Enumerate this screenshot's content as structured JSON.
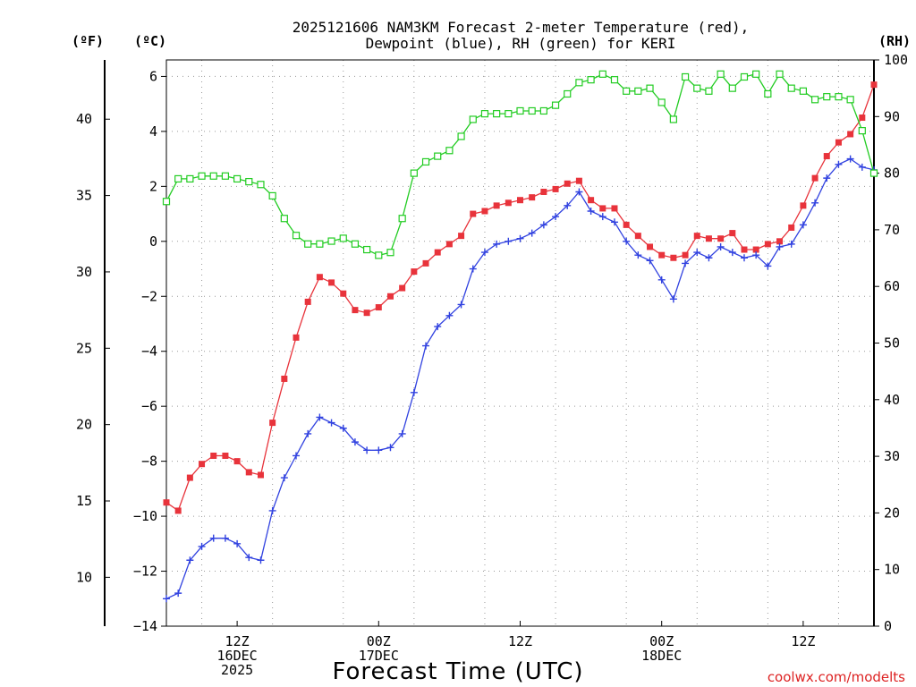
{
  "chart_data": {
    "type": "line",
    "title_line1": "2025121606 NAM3KM Forecast 2-meter Temperature (red),",
    "title_line2": "Dewpoint (blue), RH (green) for KERI",
    "xlabel": "Forecast Time (UTC)",
    "credit": "coolwx.com/modelts",
    "unit_f": "(ºF)",
    "unit_c": "(ºC)",
    "unit_rh": "(RH)",
    "x_hours": [
      0,
      1,
      2,
      3,
      4,
      5,
      6,
      7,
      8,
      9,
      10,
      11,
      12,
      13,
      14,
      15,
      16,
      17,
      18,
      19,
      20,
      21,
      22,
      23,
      24,
      25,
      26,
      27,
      28,
      29,
      30,
      31,
      32,
      33,
      34,
      35,
      36,
      37,
      38,
      39,
      40,
      41,
      42,
      43,
      44,
      45,
      46,
      47,
      48,
      49,
      50,
      51,
      52,
      53,
      54,
      55,
      56,
      57,
      58,
      59,
      60
    ],
    "xlim": [
      0,
      60
    ],
    "x_ticks": [
      {
        "hour": 6,
        "lines": [
          "12Z",
          "16DEC",
          "2025"
        ]
      },
      {
        "hour": 18,
        "lines": [
          "00Z",
          "17DEC"
        ]
      },
      {
        "hour": 30,
        "lines": [
          "12Z"
        ]
      },
      {
        "hour": 42,
        "lines": [
          "00Z",
          "18DEC"
        ]
      },
      {
        "hour": 54,
        "lines": [
          "12Z"
        ]
      }
    ],
    "ylim_c": [
      -14,
      6.6
    ],
    "yticks_c": [
      "-14",
      "-12",
      "-10",
      "-8",
      "-6",
      "-4",
      "-2",
      "0",
      "2",
      "4",
      "6"
    ],
    "yticks_f": [
      "10",
      "15",
      "20",
      "25",
      "30",
      "35",
      "40"
    ],
    "ylim_rh": [
      0,
      100
    ],
    "yticks_rh": [
      "0",
      "10",
      "20",
      "30",
      "40",
      "50",
      "60",
      "70",
      "80",
      "90",
      "100"
    ],
    "series": [
      {
        "name": "Temperature",
        "color": "#e8333b",
        "axis": "c",
        "marker": "filled-square",
        "values": [
          -9.5,
          -9.8,
          -8.6,
          -8.1,
          -7.8,
          -7.8,
          -8.0,
          -8.4,
          -8.5,
          -6.6,
          -5.0,
          -3.5,
          -2.2,
          -1.3,
          -1.5,
          -1.9,
          -2.5,
          -2.6,
          -2.4,
          -2.0,
          -1.7,
          -1.1,
          -0.8,
          -0.4,
          -0.1,
          0.2,
          1.0,
          1.1,
          1.3,
          1.4,
          1.5,
          1.6,
          1.8,
          1.9,
          2.1,
          2.2,
          1.5,
          1.2,
          1.2,
          0.6,
          0.2,
          -0.2,
          -0.5,
          -0.6,
          -0.5,
          0.2,
          0.1,
          0.1,
          0.3,
          -0.3,
          -0.3,
          -0.1,
          0.0,
          0.5,
          1.3,
          2.3,
          3.1,
          3.6,
          3.9,
          4.5,
          5.7
        ]
      },
      {
        "name": "Dewpoint",
        "color": "#3142e0",
        "axis": "c",
        "marker": "plus",
        "values": [
          -13.0,
          -12.8,
          -11.6,
          -11.1,
          -10.8,
          -10.8,
          -11.0,
          -11.5,
          -11.6,
          -9.8,
          -8.6,
          -7.8,
          -7.0,
          -6.4,
          -6.6,
          -6.8,
          -7.3,
          -7.6,
          -7.6,
          -7.5,
          -7.0,
          -5.5,
          -3.8,
          -3.1,
          -2.7,
          -2.3,
          -1.0,
          -0.4,
          -0.1,
          0.0,
          0.1,
          0.3,
          0.6,
          0.9,
          1.3,
          1.8,
          1.1,
          0.9,
          0.7,
          0.0,
          -0.5,
          -0.7,
          -1.4,
          -2.1,
          -0.8,
          -0.4,
          -0.6,
          -0.2,
          -0.4,
          -0.6,
          -0.5,
          -0.9,
          -0.2,
          -0.1,
          0.6,
          1.4,
          2.3,
          2.8,
          3.0,
          2.7,
          2.6
        ]
      },
      {
        "name": "RH",
        "color": "#22cc22",
        "axis": "rh",
        "marker": "open-square",
        "values": [
          75,
          79,
          79,
          79.5,
          79.5,
          79.5,
          79,
          78.5,
          78,
          76,
          72,
          69,
          67.5,
          67.5,
          68,
          68.5,
          67.5,
          66.5,
          65.5,
          66,
          72,
          80,
          82,
          83,
          84,
          86.5,
          89.5,
          90.5,
          90.5,
          90.5,
          91,
          91,
          91,
          92,
          94,
          96,
          96.5,
          97.5,
          96.5,
          94.5,
          94.5,
          95,
          92.5,
          89.5,
          97,
          95,
          94.5,
          97.5,
          95,
          97,
          97.5,
          94,
          97.5,
          95,
          94.5,
          93,
          93.5,
          93.5,
          93,
          87.5,
          80
        ]
      }
    ]
  }
}
